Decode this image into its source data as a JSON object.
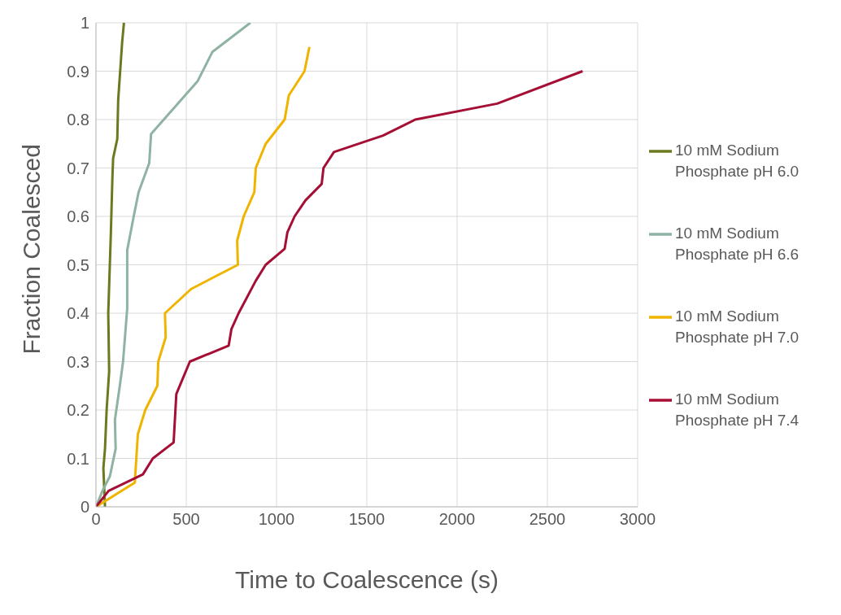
{
  "chart_data": {
    "type": "line",
    "xlabel": "Time to Coalescence (s)",
    "ylabel": "Fraction Coalesced",
    "xlim": [
      0,
      3000
    ],
    "xticks": [
      0,
      500,
      1000,
      1500,
      2000,
      2500,
      3000
    ],
    "ylim": [
      0,
      1
    ],
    "yticks": [
      0,
      0.1,
      0.2,
      0.3,
      0.4,
      0.5,
      0.6,
      0.7,
      0.8,
      0.9,
      1
    ],
    "grid": true,
    "legend": "right",
    "marker": "none",
    "line_style": "solid",
    "series": [
      {
        "name": "10 mM Sodium Phosphate pH 6.0",
        "color": "#6b7a1f",
        "x": [
          50,
          41,
          50,
          59,
          73,
          68,
          82,
          91,
          95,
          118,
          123,
          145,
          155
        ],
        "values": [
          0,
          0.08,
          0.12,
          0.2,
          0.28,
          0.4,
          0.56,
          0.68,
          0.72,
          0.76,
          0.84,
          0.96,
          1
        ]
      },
      {
        "name": "10 mM Sodium Phosphate pH 6.6",
        "color": "#8fb3a3",
        "x": [
          0,
          36,
          77,
          109,
          105,
          132,
          150,
          173,
          173,
          209,
          236,
          295,
          305,
          564,
          645,
          855
        ],
        "values": [
          0,
          0.033,
          0.063,
          0.12,
          0.18,
          0.25,
          0.3,
          0.41,
          0.53,
          0.6,
          0.65,
          0.71,
          0.77,
          0.88,
          0.94,
          1
        ]
      },
      {
        "name": "10 mM Sodium Phosphate pH 7.0",
        "color": "#f0b400",
        "x": [
          0,
          215,
          232,
          273,
          340,
          345,
          386,
          382,
          527,
          786,
          782,
          818,
          877,
          885,
          940,
          1045,
          1068,
          1155,
          1182
        ],
        "values": [
          0,
          0.05,
          0.15,
          0.2,
          0.25,
          0.3,
          0.35,
          0.4,
          0.45,
          0.5,
          0.55,
          0.6,
          0.65,
          0.7,
          0.75,
          0.8,
          0.85,
          0.9,
          0.95
        ]
      },
      {
        "name": "10 mM Sodium Phosphate pH 7.4",
        "color": "#a50f35",
        "x": [
          0,
          70,
          260,
          315,
          430,
          445,
          520,
          735,
          750,
          790,
          885,
          940,
          1045,
          1060,
          1100,
          1160,
          1250,
          1260,
          1318,
          1590,
          1768,
          2222,
          2695
        ],
        "values": [
          0,
          0.033,
          0.067,
          0.1,
          0.133,
          0.233,
          0.3,
          0.333,
          0.367,
          0.4,
          0.467,
          0.5,
          0.533,
          0.567,
          0.6,
          0.633,
          0.667,
          0.7,
          0.733,
          0.767,
          0.8,
          0.833,
          0.9
        ]
      }
    ]
  }
}
